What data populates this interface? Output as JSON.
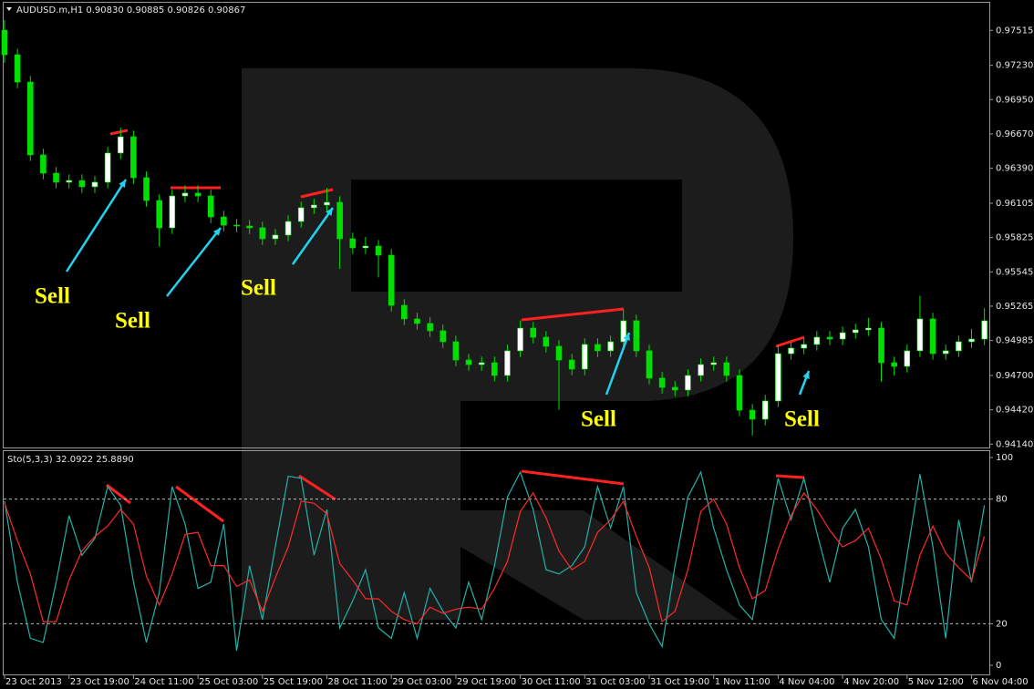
{
  "chart_data": [
    {
      "type": "candlestick",
      "title": "AUDUSD.m,H1  0.90830 0.90885 0.90826 0.90867",
      "up_color": "#ffffff",
      "down_color": "#00e000",
      "wick_color": "#00e000",
      "open": [
        0.97515,
        0.97316,
        0.97093,
        0.96499,
        0.9635,
        0.96276,
        0.9629,
        0.96239,
        0.96276,
        0.96514,
        0.96647,
        0.96313,
        0.96127,
        0.95904,
        0.96164,
        0.96187,
        0.96164,
        0.95993,
        0.95926,
        0.95919,
        0.95904,
        0.95815,
        0.95845,
        0.95956,
        0.96068,
        0.9609,
        0.96112,
        0.95815,
        0.95741,
        0.95755,
        0.95681,
        0.95272,
        0.95161,
        0.95124,
        0.95064,
        0.94975,
        0.94826,
        0.94789,
        0.94804,
        0.947,
        0.94901,
        0.95086,
        0.95012,
        0.94938,
        0.94826,
        0.94752,
        0.94953,
        0.94901,
        0.94975,
        0.95146,
        0.94901,
        0.94678,
        0.94603,
        0.94581,
        0.947,
        0.94789,
        0.94804,
        0.947,
        0.94417,
        0.94343,
        0.94492,
        0.94878,
        0.94923,
        0.94953,
        0.95012,
        0.94997,
        0.95049,
        0.95072,
        0.95086,
        0.94804,
        0.94774,
        0.94901,
        0.95161,
        0.94878,
        0.94901,
        0.94975,
        0.94997
      ],
      "high": [
        0.976,
        0.97366,
        0.97143,
        0.96549,
        0.964,
        0.9634,
        0.9634,
        0.96326,
        0.96564,
        0.9672,
        0.96697,
        0.96363,
        0.96177,
        0.96214,
        0.9625,
        0.9625,
        0.96214,
        0.96043,
        0.95976,
        0.95969,
        0.95954,
        0.95895,
        0.96006,
        0.96118,
        0.9614,
        0.9623,
        0.96162,
        0.95865,
        0.9583,
        0.95805,
        0.95731,
        0.95322,
        0.95211,
        0.95174,
        0.95114,
        0.95025,
        0.94876,
        0.94854,
        0.94854,
        0.94951,
        0.9515,
        0.95136,
        0.95062,
        0.94988,
        0.94876,
        0.95003,
        0.95003,
        0.95025,
        0.9524,
        0.95196,
        0.94951,
        0.94728,
        0.94653,
        0.9475,
        0.94839,
        0.94854,
        0.94854,
        0.9475,
        0.94467,
        0.94542,
        0.9495,
        0.94973,
        0.95003,
        0.95062,
        0.95062,
        0.95099,
        0.95122,
        0.9517,
        0.95136,
        0.94854,
        0.94951,
        0.9535,
        0.95211,
        0.94951,
        0.95025,
        0.9508,
        0.9525
      ],
      "low": [
        0.9725,
        0.97043,
        0.96449,
        0.963,
        0.96226,
        0.96226,
        0.96189,
        0.96189,
        0.96226,
        0.96464,
        0.96263,
        0.96077,
        0.9575,
        0.95854,
        0.96114,
        0.96114,
        0.95943,
        0.95876,
        0.95869,
        0.95854,
        0.95765,
        0.95765,
        0.95795,
        0.95906,
        0.96018,
        0.9604,
        0.9557,
        0.95691,
        0.95691,
        0.955,
        0.95222,
        0.95111,
        0.95074,
        0.95014,
        0.94925,
        0.94776,
        0.94739,
        0.94739,
        0.9465,
        0.9465,
        0.94851,
        0.94962,
        0.94888,
        0.9442,
        0.94702,
        0.94702,
        0.94851,
        0.94851,
        0.94925,
        0.94851,
        0.94628,
        0.94553,
        0.94531,
        0.94531,
        0.9465,
        0.94739,
        0.9465,
        0.94367,
        0.9421,
        0.94293,
        0.94442,
        0.94828,
        0.94873,
        0.94903,
        0.94947,
        0.94947,
        0.95,
        0.95022,
        0.9465,
        0.947,
        0.94724,
        0.94851,
        0.94828,
        0.94828,
        0.94851,
        0.94925,
        0.94947
      ],
      "close": [
        0.97316,
        0.97093,
        0.96499,
        0.9635,
        0.96276,
        0.9629,
        0.96239,
        0.96276,
        0.96514,
        0.96647,
        0.96313,
        0.96127,
        0.95904,
        0.96164,
        0.96187,
        0.96164,
        0.95993,
        0.95926,
        0.95919,
        0.95904,
        0.95815,
        0.95845,
        0.95956,
        0.96068,
        0.9609,
        0.96112,
        0.95815,
        0.95741,
        0.95755,
        0.95681,
        0.95272,
        0.95161,
        0.95124,
        0.95064,
        0.94975,
        0.94826,
        0.94789,
        0.94804,
        0.947,
        0.94901,
        0.95086,
        0.95012,
        0.94938,
        0.94826,
        0.94752,
        0.94953,
        0.94901,
        0.94975,
        0.95146,
        0.94901,
        0.94678,
        0.94603,
        0.94581,
        0.947,
        0.94789,
        0.94804,
        0.947,
        0.94417,
        0.94343,
        0.94492,
        0.94878,
        0.94923,
        0.94953,
        0.95012,
        0.94997,
        0.95049,
        0.95072,
        0.95086,
        0.94804,
        0.94774,
        0.94901,
        0.95161,
        0.94878,
        0.94901,
        0.94975,
        0.94997,
        0.95146
      ],
      "ylim": [
        0.9412,
        0.9774
      ],
      "yticks": [
        0.97515,
        {
          "value": 0.9723,
          "label": "0.97230"
        },
        {
          "value": 0.9695,
          "label": "0.96950"
        },
        {
          "value": 0.9667,
          "label": "0.96670"
        },
        {
          "value": 0.9639,
          "label": "0.96390"
        },
        0.96105,
        0.95825,
        0.95545,
        0.95265,
        0.94985,
        {
          "value": 0.947,
          "label": "0.94700"
        },
        {
          "value": 0.9442,
          "label": "0.94420"
        },
        {
          "value": 0.9414,
          "label": "0.94140"
        }
      ],
      "annotations": [
        "Sell",
        "Sell",
        "Sell",
        "Sell",
        "Sell"
      ],
      "grid": false
    },
    {
      "type": "line",
      "title": "Sto(5,3,3) 32.0922 25.8890",
      "categories": [
        "23 Oct 2013",
        null,
        null,
        null,
        null,
        "23 Oct 19:00",
        null,
        null,
        null,
        null,
        "24 Oct 11:00",
        null,
        null,
        null,
        null,
        "25 Oct 03:00",
        null,
        null,
        null,
        null,
        "25 Oct 19:00",
        null,
        null,
        null,
        null,
        "28 Oct 11:00",
        null,
        null,
        null,
        null,
        "29 Oct 03:00",
        null,
        null,
        null,
        null,
        "29 Oct 19:00",
        null,
        null,
        null,
        null,
        "30 Oct 11:00",
        null,
        null,
        null,
        null,
        "31 Oct 03:00",
        null,
        null,
        null,
        null,
        "31 Oct 19:00",
        null,
        null,
        null,
        null,
        "1 Nov 11:00",
        null,
        null,
        null,
        null,
        "4 Nov 04:00",
        null,
        null,
        null,
        null,
        "4 Nov 20:00",
        null,
        null,
        null,
        null,
        "5 Nov 12:00",
        null,
        null,
        null,
        null,
        "6 Nov 04:00",
        null
      ],
      "series": [
        {
          "color": "#20b2aa",
          "values": [
            79,
            40,
            13,
            11,
            40,
            72,
            53,
            61,
            86,
            77,
            40,
            11,
            35,
            86,
            68,
            37,
            40,
            68,
            7,
            48,
            22,
            57,
            91,
            90,
            53,
            75,
            18,
            31,
            46,
            18,
            13,
            35,
            13,
            37,
            26,
            18,
            40,
            22,
            48,
            81,
            93,
            75,
            46,
            44,
            48,
            57,
            86,
            66,
            86,
            35,
            20,
            9,
            48,
            81,
            93,
            66,
            46,
            29,
            22,
            57,
            90,
            70,
            90,
            64,
            40,
            66,
            75,
            57,
            22,
            13,
            53,
            92,
            57,
            13,
            70,
            40,
            77
          ]
        },
        {
          "color": "#ff2a2a",
          "values": [
            78,
            60,
            44,
            21,
            21,
            41,
            55,
            62,
            67,
            75,
            68,
            43,
            29,
            44,
            63,
            64,
            48,
            48,
            38,
            41,
            26,
            42,
            57,
            79,
            78,
            73,
            49,
            41,
            32,
            32,
            26,
            22,
            20,
            28,
            25,
            27,
            28,
            27,
            37,
            50,
            74,
            83,
            71,
            55,
            46,
            50,
            64,
            70,
            79,
            62,
            47,
            21,
            26,
            46,
            74,
            80,
            68,
            47,
            32,
            36,
            56,
            72,
            83,
            75,
            65,
            57,
            60,
            66,
            51,
            31,
            29,
            53,
            67,
            54,
            47,
            41,
            62
          ]
        }
      ],
      "ylim": [
        0,
        100
      ],
      "yticks": [
        0,
        20,
        80,
        100
      ],
      "levels": [
        20,
        80
      ],
      "grid": false
    }
  ]
}
